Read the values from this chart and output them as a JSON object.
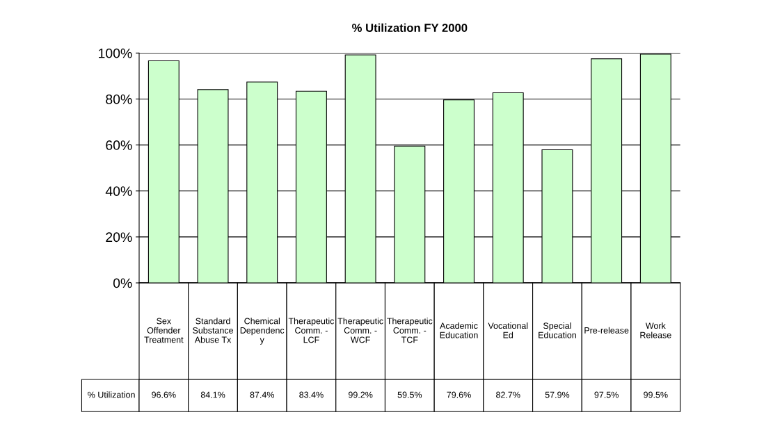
{
  "chart_data": {
    "type": "bar",
    "title": "% Utilization FY 2000",
    "categories": [
      "Sex\nOffender\nTreatment",
      "Standard\nSubstance\nAbuse Tx",
      "Chemical\nDependenc\ny",
      "Therapeutic\nComm. -\nLCF",
      "Therapeutic\nComm. -\nWCF",
      "Therapeutic\nComm. -\nTCF",
      "Academic\nEducation",
      "Vocational\nEd",
      "Special\nEducation",
      "Pre-release",
      "Work\nRelease"
    ],
    "series": [
      {
        "name": "% Utilization",
        "color": "#ccffcc",
        "values": [
          96.6,
          84.1,
          87.4,
          83.4,
          99.2,
          59.5,
          79.6,
          82.7,
          57.9,
          97.5,
          99.5
        ],
        "value_labels": [
          "96.6%",
          "84.1%",
          "87.4%",
          "83.4%",
          "99.2%",
          "59.5%",
          "79.6%",
          "82.7%",
          "57.9%",
          "97.5%",
          "99.5%"
        ]
      }
    ],
    "ylim": [
      0,
      100
    ],
    "yticks": [
      {
        "value": 0,
        "label": "0%"
      },
      {
        "value": 20,
        "label": "20%"
      },
      {
        "value": 40,
        "label": "40%"
      },
      {
        "value": 60,
        "label": "60%"
      },
      {
        "value": 80,
        "label": "80%"
      },
      {
        "value": 100,
        "label": "100%"
      }
    ],
    "grid": "y"
  }
}
